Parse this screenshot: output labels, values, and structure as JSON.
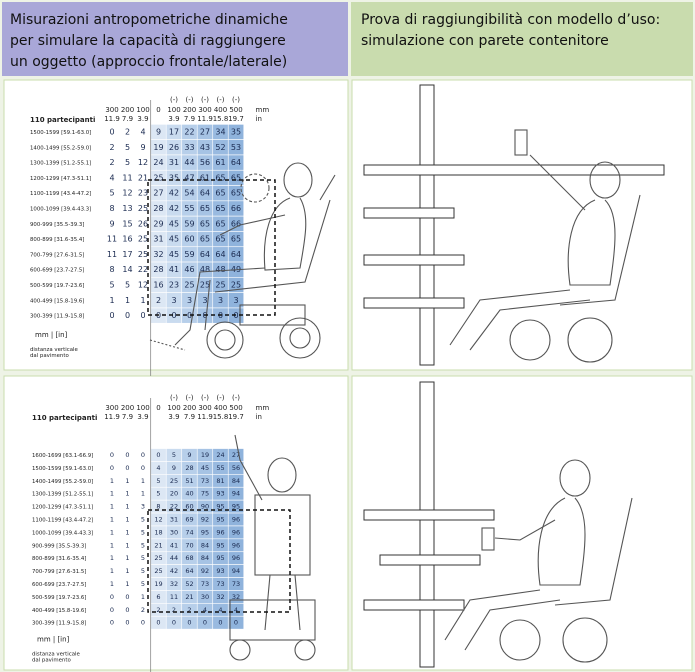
{
  "header": {
    "left": [
      "Misurazioni antropometriche dinamiche",
      "per simulare la capacità di raggiungere",
      "un oggetto (approccio frontale/laterale)"
    ],
    "right": [
      "Prova di raggiungibilità con modello d’uso:",
      "simulazione con parete contenitore"
    ]
  },
  "tables": [
    {
      "participants": "110 partecipanti",
      "columns": [
        {
          "mm": "300",
          "in": "11.9"
        },
        {
          "mm": "200",
          "in": "7.9"
        },
        {
          "mm": "100",
          "in": "3.9"
        },
        {
          "mm": "0"
        },
        {
          "sign": "(-)",
          "mm": "100",
          "in": "3.9"
        },
        {
          "sign": "(-)",
          "mm": "200",
          "in": "7.9"
        },
        {
          "sign": "(-)",
          "mm": "300",
          "in": "11.9"
        },
        {
          "sign": "(-)",
          "mm": "400",
          "in": "15.8"
        },
        {
          "sign": "(-)",
          "mm": "500",
          "in": "19.7"
        }
      ],
      "unit": {
        "mm": "mm",
        "in": "in"
      },
      "rows": [
        {
          "label": "1500-1599 [59.1-63.0]",
          "values": [
            0,
            2,
            4,
            9,
            17,
            22,
            27,
            34,
            35
          ]
        },
        {
          "label": "1400-1499 [55.2-59.0]",
          "values": [
            2,
            5,
            9,
            19,
            26,
            33,
            43,
            52,
            53
          ]
        },
        {
          "label": "1300-1399 [51.2-55.1]",
          "values": [
            2,
            5,
            12,
            24,
            31,
            44,
            56,
            61,
            64
          ]
        },
        {
          "label": "1200-1299 [47.3-51.1]",
          "values": [
            4,
            11,
            21,
            25,
            35,
            47,
            61,
            65,
            65
          ]
        },
        {
          "label": "1100-1199 [43.4-47.2]",
          "values": [
            5,
            12,
            23,
            27,
            42,
            54,
            64,
            65,
            65
          ]
        },
        {
          "label": "1000-1099 [39.4-43.3]",
          "values": [
            8,
            13,
            25,
            28,
            42,
            55,
            65,
            65,
            66
          ]
        },
        {
          "label": "900-999 [35.5-39.3]",
          "values": [
            9,
            15,
            26,
            29,
            45,
            59,
            65,
            65,
            66
          ]
        },
        {
          "label": "800-899 [31.6-35.4]",
          "values": [
            11,
            16,
            25,
            31,
            45,
            60,
            65,
            65,
            65
          ]
        },
        {
          "label": "700-799 [27.6-31.5]",
          "values": [
            11,
            17,
            25,
            32,
            45,
            59,
            64,
            64,
            64
          ]
        },
        {
          "label": "600-699 [23.7-27.5]",
          "values": [
            8,
            14,
            22,
            28,
            41,
            46,
            48,
            48,
            49
          ]
        },
        {
          "label": "500-599 [19.7-23.6]",
          "values": [
            5,
            5,
            12,
            16,
            23,
            25,
            25,
            25,
            25
          ]
        },
        {
          "label": "400-499 [15.8-19.6]",
          "values": [
            1,
            1,
            1,
            2,
            3,
            3,
            3,
            3,
            3
          ]
        },
        {
          "label": "300-399 [11.9-15.8]",
          "values": [
            0,
            0,
            0,
            0,
            0,
            0,
            0,
            0,
            0
          ]
        }
      ],
      "footer": "mm  |  [in]",
      "axis_note": [
        "distanza verticale",
        "dal pavimento"
      ]
    },
    {
      "participants": "110 partecipanti",
      "columns": [
        {
          "mm": "300",
          "in": "11.9"
        },
        {
          "mm": "200",
          "in": "7.9"
        },
        {
          "mm": "100",
          "in": "3.9"
        },
        {
          "mm": "0"
        },
        {
          "sign": "(-)",
          "mm": "100",
          "in": "3.9"
        },
        {
          "sign": "(-)",
          "mm": "200",
          "in": "7.9"
        },
        {
          "sign": "(-)",
          "mm": "300",
          "in": "11.9"
        },
        {
          "sign": "(-)",
          "mm": "400",
          "in": "15.8"
        },
        {
          "sign": "(-)",
          "mm": "500",
          "in": "19.7"
        }
      ],
      "unit": {
        "mm": "mm",
        "in": "in"
      },
      "rows": [
        {
          "label": "1600-1699 [63.1-66.9]",
          "values": [
            0,
            0,
            0,
            0,
            5,
            9,
            19,
            24,
            27
          ]
        },
        {
          "label": "1500-1599 [59.1-63.0]",
          "values": [
            0,
            0,
            0,
            4,
            9,
            28,
            45,
            55,
            56
          ]
        },
        {
          "label": "1400-1499 [55.2-59.0]",
          "values": [
            1,
            1,
            1,
            5,
            25,
            51,
            73,
            81,
            84
          ]
        },
        {
          "label": "1300-1399 [51.2-55.1]",
          "values": [
            1,
            1,
            1,
            5,
            20,
            40,
            75,
            93,
            94
          ]
        },
        {
          "label": "1200-1299 [47.3-51.1]",
          "values": [
            1,
            1,
            3,
            8,
            22,
            60,
            90,
            95,
            95
          ]
        },
        {
          "label": "1100-1199 [43.4-47.2]",
          "values": [
            1,
            1,
            5,
            12,
            31,
            69,
            92,
            95,
            96
          ]
        },
        {
          "label": "1000-1099 [39.4-43.3]",
          "values": [
            1,
            1,
            5,
            18,
            30,
            74,
            95,
            96,
            96
          ]
        },
        {
          "label": "900-999 [35.5-39.3]",
          "values": [
            1,
            1,
            5,
            21,
            41,
            70,
            84,
            95,
            96
          ]
        },
        {
          "label": "800-899 [31.6-35.4]",
          "values": [
            1,
            1,
            5,
            25,
            44,
            68,
            84,
            95,
            96
          ]
        },
        {
          "label": "700-799 [27.6-31.5]",
          "values": [
            1,
            1,
            5,
            25,
            42,
            64,
            92,
            93,
            94
          ]
        },
        {
          "label": "600-699 [23.7-27.5]",
          "values": [
            1,
            1,
            5,
            19,
            32,
            52,
            73,
            73,
            73
          ]
        },
        {
          "label": "500-599 [19.7-23.6]",
          "values": [
            0,
            0,
            1,
            6,
            11,
            21,
            30,
            32,
            32
          ]
        },
        {
          "label": "400-499 [15.8-19.6]",
          "values": [
            0,
            0,
            2,
            2,
            2,
            2,
            4,
            4,
            4
          ]
        },
        {
          "label": "300-399 [11.9-15.8]",
          "values": [
            0,
            0,
            0,
            0,
            0,
            0,
            0,
            0,
            0
          ]
        }
      ],
      "footer": "mm  |  [in]",
      "axis_note": [
        "distanza verticale",
        "dal pavimento"
      ]
    }
  ]
}
